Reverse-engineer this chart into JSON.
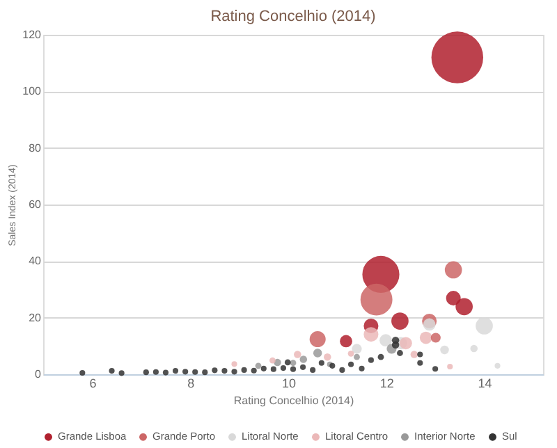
{
  "chart_data": {
    "type": "bubble",
    "title": "Rating Concelhio (2014)",
    "xlabel": "Rating Concelhio (2014)",
    "ylabel": "Sales Index (2014)",
    "xlim": [
      5,
      15.2
    ],
    "xticks": [
      6,
      8,
      10,
      12,
      14
    ],
    "ylim": [
      0,
      120
    ],
    "yticks": [
      0,
      20,
      40,
      60,
      80,
      100,
      120
    ],
    "grid": "y",
    "legend": "bottom",
    "series": [
      {
        "name": "Grande Lisboa",
        "color": "#b0202e",
        "x": [
          13.45,
          11.89,
          13.37,
          13.59,
          12.28,
          11.69,
          11.18
        ],
        "values": [
          112,
          35.3,
          26.9,
          23.9,
          18.8,
          17.1,
          11.7
        ],
        "sizes": [
          1,
          0.51,
          0.08,
          0.11,
          0.11,
          0.08,
          0.057
        ]
      },
      {
        "name": "Grande Porto",
        "color": "#cc6666",
        "x": [
          11.8,
          13.37,
          10.6,
          12.88,
          13.01
        ],
        "values": [
          26.4,
          36.9,
          12.4,
          18.8,
          12.9
        ],
        "sizes": [
          0.38,
          0.11,
          0.096,
          0.08,
          0.036
        ]
      },
      {
        "name": "Litoral Norte",
        "color": "#d9d9d9",
        "x": [
          14.0,
          12.88,
          13.79,
          13.19,
          11.99,
          11.4,
          12.3,
          14.27
        ],
        "values": [
          17.1,
          17.6,
          9.1,
          8.6,
          12,
          9,
          11,
          3
        ],
        "sizes": [
          0.11,
          0.057,
          0.02,
          0.028,
          0.057,
          0.036,
          0.057,
          0.012
        ]
      },
      {
        "name": "Litoral Centro",
        "color": "#ebb8b8",
        "x": [
          11.69,
          12.81,
          12.4,
          12.57,
          10.19,
          9.68,
          8.9,
          10.8,
          11.28,
          13.3
        ],
        "values": [
          14.1,
          12.9,
          11,
          7,
          7,
          4.9,
          3.6,
          6.1,
          7.3,
          2.7
        ],
        "sizes": [
          0.08,
          0.057,
          0.057,
          0.02,
          0.02,
          0.014,
          0.012,
          0.02,
          0.014,
          0.012
        ]
      },
      {
        "name": "Interior Norte",
        "color": "#999999",
        "x": [
          10.6,
          11.4,
          10.31,
          9.78,
          9.39,
          10.1,
          12.11,
          10.85
        ],
        "values": [
          7.5,
          6.1,
          5.3,
          4.2,
          3,
          4,
          9,
          3.5
        ],
        "sizes": [
          0.028,
          0.014,
          0.02,
          0.02,
          0.014,
          0.014,
          0.036,
          0.012
        ]
      },
      {
        "name": "Sul",
        "color": "#333333",
        "x": [
          12.19,
          12.19,
          12.28,
          11.89,
          11.69,
          12.69,
          12.69,
          13.0,
          9.99,
          10.68,
          10.9,
          11.28,
          5.8,
          6.4,
          6.6,
          7.1,
          7.3,
          7.5,
          7.7,
          7.9,
          8.1,
          8.3,
          8.5,
          8.7,
          8.9,
          9.1,
          9.3,
          9.5,
          9.7,
          9.9,
          10.1,
          10.3,
          10.5,
          11.1,
          11.5
        ],
        "values": [
          12,
          10.4,
          7.5,
          6.1,
          5,
          7,
          4,
          1.9,
          4.2,
          4,
          3,
          3.5,
          0.5,
          1.2,
          0.4,
          0.7,
          0.8,
          0.6,
          1.2,
          0.9,
          0.8,
          0.7,
          1.4,
          1.2,
          0.9,
          1.5,
          1.3,
          2,
          1.8,
          2.2,
          1.8,
          2.5,
          1.5,
          1.5,
          2
        ],
        "sizes": [
          0.02,
          0.02,
          0.014,
          0.014,
          0.012,
          0.012,
          0.012,
          0.012,
          0.014,
          0.012,
          0.012,
          0.012,
          0.012,
          0.012,
          0.012,
          0.012,
          0.012,
          0.012,
          0.012,
          0.012,
          0.012,
          0.012,
          0.012,
          0.012,
          0.012,
          0.012,
          0.012,
          0.012,
          0.012,
          0.012,
          0.012,
          0.012,
          0.012,
          0.012,
          0.012
        ]
      }
    ]
  }
}
